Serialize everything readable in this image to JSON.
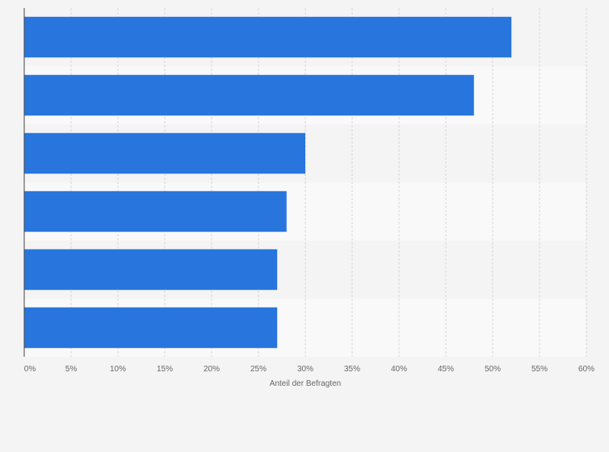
{
  "chart_data": {
    "type": "bar",
    "orientation": "horizontal",
    "categories": [
      "",
      "",
      "",
      "",
      "",
      ""
    ],
    "values": [
      52,
      48,
      30,
      28,
      27,
      27
    ],
    "title": "",
    "xlabel": "Anteil der Befragten",
    "ylabel": "",
    "xlim": [
      0,
      60
    ],
    "x_ticks": [
      0,
      5,
      10,
      15,
      20,
      25,
      30,
      35,
      40,
      45,
      50,
      55,
      60
    ],
    "tick_suffix": "%",
    "grid": "vertical dashed",
    "legend": "none",
    "colors": {
      "bar": "#2876dd",
      "background": "#f4f4f4",
      "band_light": "#f9f9f9",
      "band_dark": "#f4f4f4",
      "grid": "#d6d6d6",
      "axis": "#444444",
      "text": "#666666"
    }
  }
}
